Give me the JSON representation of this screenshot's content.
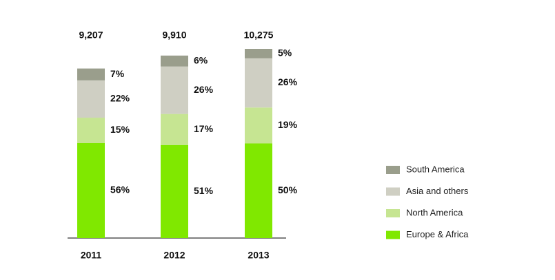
{
  "chart_data": {
    "type": "stacked_bar",
    "categories": [
      "2011",
      "2012",
      "2013"
    ],
    "totals": {
      "values": [
        9207,
        9910,
        10275
      ],
      "value_labels": [
        "9,207",
        "9,910",
        "10,275"
      ]
    },
    "series": [
      {
        "name": "Europe & Africa",
        "color": "#80e800",
        "values": [
          56,
          51,
          50
        ],
        "value_labels": [
          "56%",
          "51%",
          "50%"
        ]
      },
      {
        "name": "North America",
        "color": "#c6e592",
        "values": [
          15,
          17,
          19
        ],
        "value_labels": [
          "15%",
          "17%",
          "19%"
        ]
      },
      {
        "name": "Asia and others",
        "color": "#cfcfc3",
        "values": [
          22,
          26,
          26
        ],
        "value_labels": [
          "22%",
          "26%",
          "26%"
        ]
      },
      {
        "name": "South America",
        "color": "#9a9e8c",
        "values": [
          7,
          6,
          5
        ],
        "value_labels": [
          "7%",
          "6%",
          "5%"
        ]
      }
    ]
  }
}
